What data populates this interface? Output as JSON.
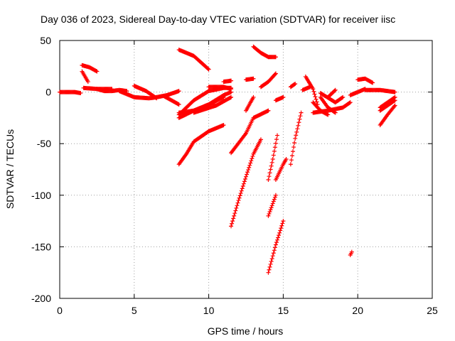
{
  "chart_data": {
    "type": "scatter",
    "title": "Day 036 of 2023, Sidereal Day-to-day VTEC variation (SDTVAR) for receiver iisc",
    "xlabel": "GPS time / hours",
    "ylabel": "SDTVAR / TECUs",
    "xlim": [
      0,
      25
    ],
    "ylim": [
      -200,
      50
    ],
    "xticks": [
      0,
      5,
      10,
      15,
      20,
      25
    ],
    "yticks": [
      -200,
      -150,
      -100,
      -50,
      0,
      50
    ],
    "grid": true,
    "legend": "none",
    "marker": "+",
    "color": "#ff0000",
    "series": [
      {
        "x": [
          0.0,
          0.5,
          1.0,
          1.4
        ],
        "y": [
          0,
          0,
          0,
          -1
        ]
      },
      {
        "x": [
          1.5,
          2.0,
          2.5
        ],
        "y": [
          26,
          24,
          20
        ]
      },
      {
        "x": [
          1.5,
          1.7,
          1.9
        ],
        "y": [
          20,
          15,
          10
        ]
      },
      {
        "x": [
          1.6,
          2.5,
          3.5
        ],
        "y": [
          4,
          3,
          3
        ]
      },
      {
        "x": [
          2.5,
          3.0,
          3.5,
          4.0,
          4.5
        ],
        "y": [
          3,
          1,
          1,
          2,
          1
        ]
      },
      {
        "x": [
          4.0,
          4.5,
          5.0,
          6.0,
          6.5
        ],
        "y": [
          1,
          -2,
          -5,
          -6,
          -5
        ]
      },
      {
        "x": [
          5.0,
          5.8,
          6.5
        ],
        "y": [
          6,
          1,
          -6
        ]
      },
      {
        "x": [
          6.5,
          7.2,
          8.0
        ],
        "y": [
          -5,
          -3,
          1
        ]
      },
      {
        "x": [
          7.0,
          7.5,
          8.0
        ],
        "y": [
          -4,
          -8,
          -12
        ]
      },
      {
        "x": [
          8.0,
          9.0,
          10.0
        ],
        "y": [
          41,
          35,
          22
        ]
      },
      {
        "x": [
          8.0,
          9.0,
          10.0,
          11.0
        ],
        "y": [
          -20,
          -18,
          -12,
          -5
        ]
      },
      {
        "x": [
          8.0,
          9.0,
          10.0,
          11.0,
          11.5
        ],
        "y": [
          -25,
          -18,
          -12,
          -3,
          0
        ]
      },
      {
        "x": [
          8.0,
          9.0,
          10.0,
          11.0,
          11.5
        ],
        "y": [
          -22,
          -8,
          1,
          4,
          4
        ]
      },
      {
        "x": [
          8.0,
          8.5,
          9.0,
          10.0,
          11.0
        ],
        "y": [
          -70,
          -60,
          -48,
          -38,
          -32
        ]
      },
      {
        "x": [
          9.0,
          10.5,
          11.5
        ],
        "y": [
          -20,
          -13,
          -5
        ]
      },
      {
        "x": [
          10.0,
          11.0,
          11.5
        ],
        "y": [
          5,
          5,
          3
        ]
      },
      {
        "x": [
          11.0,
          11.5
        ],
        "y": [
          10,
          11
        ]
      },
      {
        "x": [
          11.5,
          12.5,
          13.0,
          14.0
        ],
        "y": [
          -59,
          -40,
          -25,
          -18
        ]
      },
      {
        "x": [
          11.5,
          12.0,
          12.5,
          13.0,
          13.5
        ],
        "y": [
          -130,
          -105,
          -82,
          -60,
          -46
        ]
      },
      {
        "x": [
          12.5,
          13.0
        ],
        "y": [
          -18,
          -5
        ]
      },
      {
        "x": [
          12.5,
          13.0
        ],
        "y": [
          12,
          13
        ]
      },
      {
        "x": [
          13.0,
          13.5,
          14.0,
          14.5
        ],
        "y": [
          44,
          38,
          34,
          34
        ]
      },
      {
        "x": [
          13.5,
          14.0,
          14.5
        ],
        "y": [
          5,
          10,
          18
        ]
      },
      {
        "x": [
          14.0,
          14.3,
          14.6
        ],
        "y": [
          -85,
          -65,
          -42
        ]
      },
      {
        "x": [
          14.0,
          14.5,
          15.0
        ],
        "y": [
          -175,
          -148,
          -125
        ]
      },
      {
        "x": [
          14.0,
          14.5
        ],
        "y": [
          -120,
          -100
        ]
      },
      {
        "x": [
          14.5,
          15.0,
          15.2
        ],
        "y": [
          -85,
          -70,
          -65
        ]
      },
      {
        "x": [
          14.5,
          15.0
        ],
        "y": [
          -8,
          -5
        ]
      },
      {
        "x": [
          15.5,
          15.8,
          16.2
        ],
        "y": [
          -70,
          -45,
          -20
        ]
      },
      {
        "x": [
          15.5,
          15.8
        ],
        "y": [
          5,
          8
        ]
      },
      {
        "x": [
          16.3,
          16.8
        ],
        "y": [
          2,
          5
        ]
      },
      {
        "x": [
          16.5,
          17.0,
          17.3
        ],
        "y": [
          15,
          3,
          -12
        ]
      },
      {
        "x": [
          17.0,
          17.5,
          18.0
        ],
        "y": [
          -10,
          -18,
          -22
        ]
      },
      {
        "x": [
          17.0,
          18.0,
          19.0,
          19.5
        ],
        "y": [
          -20,
          -18,
          -15,
          -10
        ]
      },
      {
        "x": [
          17.5,
          18.0,
          18.5
        ],
        "y": [
          -5,
          -15,
          -20
        ]
      },
      {
        "x": [
          17.5,
          18.5,
          19.0
        ],
        "y": [
          -1,
          -10,
          -5
        ]
      },
      {
        "x": [
          18.0,
          18.5
        ],
        "y": [
          -5,
          2
        ]
      },
      {
        "x": [
          19.5,
          20.0,
          20.5
        ],
        "y": [
          -3,
          0,
          3
        ]
      },
      {
        "x": [
          20.0,
          20.5,
          21.0
        ],
        "y": [
          12,
          13,
          9
        ]
      },
      {
        "x": [
          20.5,
          21.5,
          22.5
        ],
        "y": [
          2,
          2,
          0
        ]
      },
      {
        "x": [
          19.5,
          19.6
        ],
        "y": [
          -158,
          -155
        ]
      },
      {
        "x": [
          21.5,
          22.0,
          22.5
        ],
        "y": [
          -32,
          -22,
          -13
        ]
      },
      {
        "x": [
          21.5,
          22.5
        ],
        "y": [
          -18,
          -8
        ]
      },
      {
        "x": [
          21.5,
          22.5
        ],
        "y": [
          -15,
          -5
        ]
      }
    ]
  }
}
